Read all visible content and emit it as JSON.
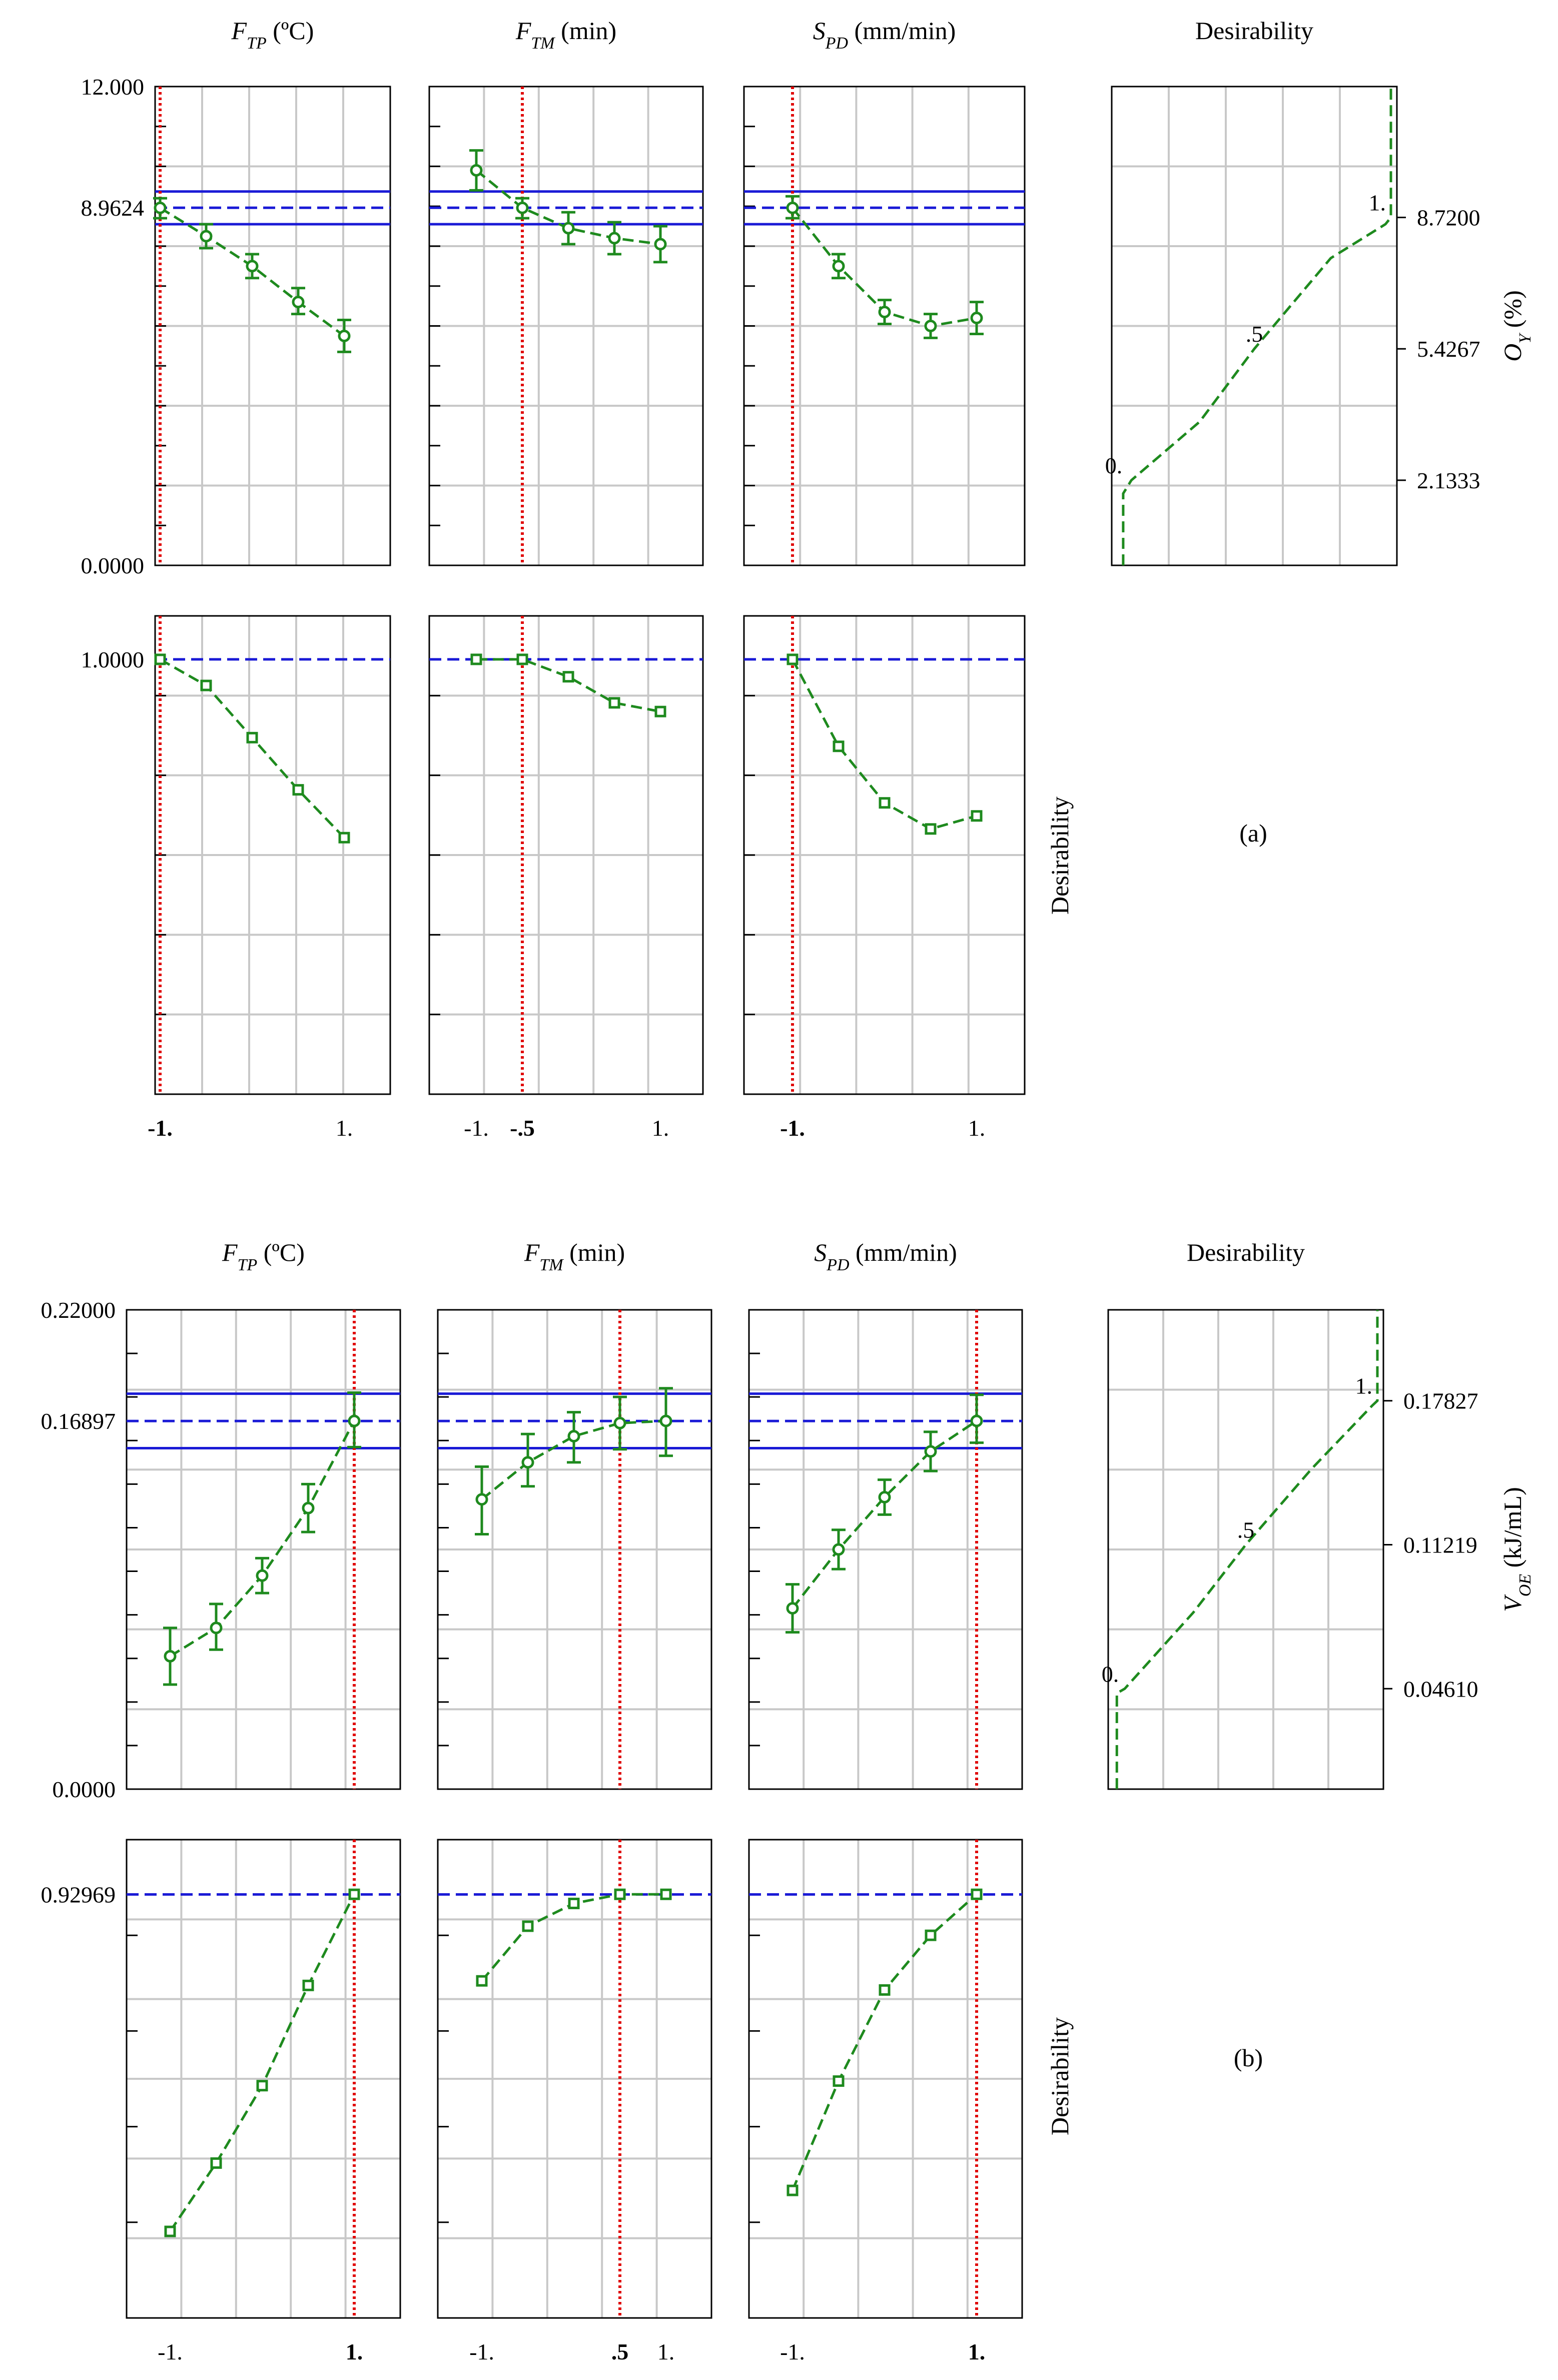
{
  "chart_data": [
    {
      "panel": "(a)",
      "type": "line",
      "title": "(a)",
      "column_headers": [
        {
          "var": "F",
          "sub": "TP",
          "unit": " (ºC)"
        },
        {
          "var": "F",
          "sub": "TM",
          "unit": " (min)"
        },
        {
          "var": "S",
          "sub": "PD",
          "unit": " (mm/min)"
        },
        {
          "var": "",
          "sub": "",
          "unit": "Desirability"
        }
      ],
      "response_label": {
        "var": "O",
        "sub": "Y",
        "unit": " (%)"
      },
      "desirability_label": "Desirability",
      "response_axis": {
        "ylim": [
          0,
          12
        ],
        "top_label": "12.000",
        "current_label": "8.9624",
        "bottom_label": "0.0000",
        "current": 8.9624,
        "ci": [
          8.55,
          9.37
        ]
      },
      "desirability_axis": {
        "ylim": [
          0,
          1.1
        ],
        "current_label": "1.0000",
        "current": 1.0
      },
      "x_ticks": [
        [
          {
            "v": -1,
            "label": "-1.",
            "bold": true
          },
          {
            "v": 1,
            "label": "1.",
            "bold": false
          }
        ],
        [
          {
            "v": -1,
            "label": "-1.",
            "bold": false
          },
          {
            "v": -0.5,
            "label": "-.5",
            "bold": true
          },
          {
            "v": 1,
            "label": "1.",
            "bold": false
          }
        ],
        [
          {
            "v": -1,
            "label": "-1.",
            "bold": true
          },
          {
            "v": 1,
            "label": "1.",
            "bold": false
          }
        ]
      ],
      "current_x": [
        -1,
        -0.5,
        -1
      ],
      "x": [
        -1,
        -0.5,
        0,
        0.5,
        1
      ],
      "response_series": [
        {
          "factor": "FTP",
          "values": [
            8.96,
            8.25,
            7.5,
            6.6,
            5.75
          ],
          "lower": [
            8.7,
            7.95,
            7.2,
            6.3,
            5.35
          ],
          "upper": [
            9.2,
            8.55,
            7.8,
            6.95,
            6.15
          ]
        },
        {
          "factor": "FTM",
          "values": [
            9.9,
            8.96,
            8.45,
            8.2,
            8.05
          ],
          "lower": [
            9.4,
            8.7,
            8.05,
            7.8,
            7.6
          ],
          "upper": [
            10.4,
            9.2,
            8.85,
            8.6,
            8.5
          ]
        },
        {
          "factor": "SPD",
          "values": [
            8.96,
            7.5,
            6.35,
            6.0,
            6.2
          ],
          "lower": [
            8.7,
            7.2,
            6.05,
            5.7,
            5.8
          ],
          "upper": [
            9.25,
            7.8,
            6.65,
            6.3,
            6.6
          ]
        }
      ],
      "desirability_series": [
        {
          "factor": "FTP",
          "values": [
            1.0,
            0.94,
            0.82,
            0.7,
            0.59
          ]
        },
        {
          "factor": "FTM",
          "values": [
            1.0,
            1.0,
            0.96,
            0.9,
            0.88
          ]
        },
        {
          "factor": "SPD",
          "values": [
            1.0,
            0.8,
            0.67,
            0.61,
            0.64
          ]
        }
      ],
      "desirability_function": {
        "y_ticks": [
          {
            "v": 2.1333,
            "label": "2.1333"
          },
          {
            "v": 5.4267,
            "label": "5.4267"
          },
          {
            "v": 8.72,
            "label": "8.7200"
          }
        ],
        "curve_labels": [
          {
            "label": "0.",
            "d": 0,
            "at": 2.1333
          },
          {
            "label": ".5",
            "d": 0.5,
            "at": 5.4267
          },
          {
            "label": "1.",
            "d": 1,
            "at": 8.72
          }
        ],
        "points": [
          [
            0.02,
            0
          ],
          [
            0.02,
            1.8
          ],
          [
            0.05,
            2.1333
          ],
          [
            0.3,
            3.6
          ],
          [
            0.5,
            5.4267
          ],
          [
            0.78,
            7.7
          ],
          [
            0.98,
            8.55
          ],
          [
            1.0,
            8.72
          ],
          [
            1.0,
            12.0
          ]
        ]
      }
    },
    {
      "panel": "(b)",
      "type": "line",
      "title": "(b)",
      "column_headers": [
        {
          "var": "F",
          "sub": "TP",
          "unit": " (ºC)"
        },
        {
          "var": "F",
          "sub": "TM",
          "unit": " (min)"
        },
        {
          "var": "S",
          "sub": "PD",
          "unit": " (mm/min)"
        },
        {
          "var": "",
          "sub": "",
          "unit": "Desirability"
        }
      ],
      "response_label": {
        "var": "V",
        "sub": "OE",
        "unit": " (kJ/mL)"
      },
      "desirability_label": "Desirability",
      "response_axis": {
        "ylim": [
          0,
          0.22
        ],
        "top_label": "0.22000",
        "current_label": "0.16897",
        "bottom_label": "0.0000",
        "current": 0.16897,
        "ci": [
          0.1565,
          0.1815
        ]
      },
      "desirability_axis": {
        "ylim": [
          0,
          1.05
        ],
        "current_label": "0.92969",
        "current": 0.92969
      },
      "x_ticks": [
        [
          {
            "v": -1,
            "label": "-1.",
            "bold": false
          },
          {
            "v": 1,
            "label": "1.",
            "bold": true
          }
        ],
        [
          {
            "v": -1,
            "label": "-1.",
            "bold": false
          },
          {
            "v": 0.5,
            "label": ".5",
            "bold": true
          },
          {
            "v": 1,
            "label": "1.",
            "bold": false
          }
        ],
        [
          {
            "v": -1,
            "label": "-1.",
            "bold": false
          },
          {
            "v": 1,
            "label": "1.",
            "bold": true
          }
        ]
      ],
      "current_x": [
        1,
        0.5,
        1
      ],
      "x": [
        -1,
        -0.5,
        0,
        0.5,
        1
      ],
      "response_series": [
        {
          "factor": "FTP",
          "values": [
            0.061,
            0.074,
            0.098,
            0.129,
            0.169
          ],
          "lower": [
            0.048,
            0.064,
            0.09,
            0.118,
            0.157
          ],
          "upper": [
            0.074,
            0.085,
            0.106,
            0.14,
            0.182
          ]
        },
        {
          "factor": "FTM",
          "values": [
            0.133,
            0.15,
            0.162,
            0.168,
            0.169
          ],
          "lower": [
            0.117,
            0.139,
            0.15,
            0.156,
            0.153
          ],
          "upper": [
            0.148,
            0.163,
            0.173,
            0.18,
            0.184
          ]
        },
        {
          "factor": "SPD",
          "values": [
            0.083,
            0.11,
            0.134,
            0.155,
            0.169
          ],
          "lower": [
            0.072,
            0.101,
            0.126,
            0.146,
            0.159
          ],
          "upper": [
            0.094,
            0.119,
            0.142,
            0.164,
            0.181
          ]
        }
      ],
      "desirability_series": [
        {
          "factor": "FTP",
          "values": [
            0.19,
            0.34,
            0.51,
            0.73,
            0.93
          ]
        },
        {
          "factor": "FTM",
          "values": [
            0.74,
            0.86,
            0.91,
            0.93,
            0.93
          ]
        },
        {
          "factor": "SPD",
          "values": [
            0.28,
            0.52,
            0.72,
            0.84,
            0.93
          ]
        }
      ],
      "desirability_function": {
        "y_ticks": [
          {
            "v": 0.0461,
            "label": "0.04610"
          },
          {
            "v": 0.11219,
            "label": "0.11219"
          },
          {
            "v": 0.17827,
            "label": "0.17827"
          }
        ],
        "curve_labels": [
          {
            "label": "0.",
            "d": 0,
            "at": 0.0461
          },
          {
            "label": ".5",
            "d": 0.5,
            "at": 0.11219
          },
          {
            "label": "1.",
            "d": 1,
            "at": 0.17827
          }
        ],
        "points": [
          [
            0.01,
            0
          ],
          [
            0.01,
            0.044
          ],
          [
            0.04,
            0.0461
          ],
          [
            0.3,
            0.081
          ],
          [
            0.5,
            0.11219
          ],
          [
            0.75,
            0.147
          ],
          [
            0.98,
            0.176
          ],
          [
            1.0,
            0.17827
          ],
          [
            1.0,
            0.22
          ]
        ]
      }
    }
  ]
}
